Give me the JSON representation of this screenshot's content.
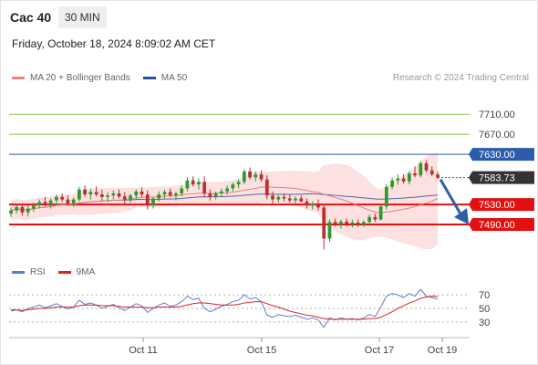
{
  "header": {
    "title": "Cac 40",
    "timeframe": "30 MIN",
    "datetime": "Friday, October 18, 2024 8:09:02 AM CET",
    "credit": "Research © 2024 Trading Central"
  },
  "legend": {
    "items": [
      {
        "label": "MA 20 + Bollinger Bands",
        "color": "#f08080"
      },
      {
        "label": "MA 50",
        "color": "#2b4f9a"
      }
    ]
  },
  "rsi_legend": {
    "items": [
      {
        "label": "RSI",
        "color": "#5b7fd6"
      },
      {
        "label": "9MA",
        "color": "#dd2222"
      }
    ]
  },
  "colors": {
    "candle_up": "#2e9a2e",
    "candle_down": "#b83030",
    "band_fill": "#fde0e0",
    "ma50": "#55669a",
    "ma20": "#e08080",
    "resistance_green": "#8bc34a",
    "pivot_blue": "#2a5caa",
    "support_red": "#e31010",
    "current_price": "#333333",
    "arrow": "#2c5fa8"
  },
  "chart_data": [
    {
      "type": "candlestick",
      "title": "",
      "x_tick_labels": [
        "Oct 11",
        "Oct 15",
        "Oct 17",
        "Oct 19"
      ],
      "y_range": [
        7410,
        7765
      ],
      "levels": [
        {
          "value": 7710.0,
          "label": "7710.00",
          "kind": "resistance"
        },
        {
          "value": 7670.0,
          "label": "7670.00",
          "kind": "resistance"
        },
        {
          "value": 7630.0,
          "label": "7630.00",
          "kind": "pivot"
        },
        {
          "value": 7583.73,
          "label": "7583.73",
          "kind": "current"
        },
        {
          "value": 7530.0,
          "label": "7530.00",
          "kind": "support"
        },
        {
          "value": 7490.0,
          "label": "7490.00",
          "kind": "support"
        }
      ],
      "ohlc": [
        [
          7512,
          7524,
          7505,
          7518
        ],
        [
          7518,
          7530,
          7512,
          7525
        ],
        [
          7525,
          7532,
          7508,
          7514
        ],
        [
          7514,
          7528,
          7506,
          7522
        ],
        [
          7522,
          7534,
          7515,
          7528
        ],
        [
          7528,
          7540,
          7522,
          7535
        ],
        [
          7535,
          7545,
          7526,
          7530
        ],
        [
          7530,
          7542,
          7522,
          7538
        ],
        [
          7538,
          7550,
          7530,
          7545
        ],
        [
          7545,
          7552,
          7535,
          7540
        ],
        [
          7540,
          7548,
          7528,
          7532
        ],
        [
          7532,
          7544,
          7525,
          7540
        ],
        [
          7540,
          7565,
          7536,
          7560
        ],
        [
          7560,
          7568,
          7545,
          7550
        ],
        [
          7550,
          7562,
          7540,
          7555
        ],
        [
          7555,
          7566,
          7546,
          7550
        ],
        [
          7550,
          7560,
          7538,
          7545
        ],
        [
          7545,
          7554,
          7535,
          7548
        ],
        [
          7548,
          7558,
          7540,
          7552
        ],
        [
          7552,
          7560,
          7542,
          7546
        ],
        [
          7546,
          7555,
          7530,
          7540
        ],
        [
          7540,
          7552,
          7534,
          7548
        ],
        [
          7548,
          7560,
          7540,
          7556
        ],
        [
          7556,
          7564,
          7544,
          7550
        ],
        [
          7550,
          7558,
          7520,
          7528
        ],
        [
          7528,
          7545,
          7522,
          7542
        ],
        [
          7542,
          7556,
          7536,
          7550
        ],
        [
          7550,
          7560,
          7542,
          7555
        ],
        [
          7555,
          7562,
          7545,
          7548
        ],
        [
          7548,
          7556,
          7538,
          7552
        ],
        [
          7552,
          7568,
          7546,
          7562
        ],
        [
          7562,
          7584,
          7556,
          7578
        ],
        [
          7578,
          7586,
          7566,
          7570
        ],
        [
          7570,
          7582,
          7560,
          7575
        ],
        [
          7575,
          7586,
          7545,
          7552
        ],
        [
          7552,
          7560,
          7538,
          7545
        ],
        [
          7545,
          7556,
          7540,
          7552
        ],
        [
          7552,
          7562,
          7546,
          7556
        ],
        [
          7556,
          7568,
          7550,
          7562
        ],
        [
          7562,
          7574,
          7556,
          7570
        ],
        [
          7570,
          7580,
          7562,
          7575
        ],
        [
          7575,
          7600,
          7570,
          7596
        ],
        [
          7596,
          7604,
          7580,
          7584
        ],
        [
          7584,
          7596,
          7576,
          7590
        ],
        [
          7590,
          7598,
          7575,
          7580
        ],
        [
          7580,
          7588,
          7540,
          7548
        ],
        [
          7548,
          7556,
          7532,
          7540
        ],
        [
          7540,
          7550,
          7534,
          7545
        ],
        [
          7545,
          7552,
          7536,
          7542
        ],
        [
          7542,
          7550,
          7534,
          7538
        ],
        [
          7538,
          7546,
          7530,
          7542
        ],
        [
          7542,
          7548,
          7534,
          7536
        ],
        [
          7536,
          7542,
          7522,
          7528
        ],
        [
          7528,
          7536,
          7520,
          7532
        ],
        [
          7532,
          7540,
          7518,
          7524
        ],
        [
          7524,
          7530,
          7440,
          7462
        ],
        [
          7462,
          7500,
          7455,
          7495
        ],
        [
          7495,
          7502,
          7486,
          7490
        ],
        [
          7490,
          7500,
          7482,
          7496
        ],
        [
          7496,
          7502,
          7486,
          7492
        ],
        [
          7492,
          7500,
          7484,
          7494
        ],
        [
          7494,
          7500,
          7486,
          7490
        ],
        [
          7490,
          7498,
          7485,
          7495
        ],
        [
          7495,
          7510,
          7490,
          7505
        ],
        [
          7505,
          7512,
          7495,
          7500
        ],
        [
          7500,
          7530,
          7498,
          7526
        ],
        [
          7526,
          7570,
          7520,
          7565
        ],
        [
          7565,
          7584,
          7560,
          7578
        ],
        [
          7578,
          7590,
          7570,
          7582
        ],
        [
          7582,
          7590,
          7572,
          7576
        ],
        [
          7576,
          7596,
          7570,
          7592
        ],
        [
          7592,
          7606,
          7584,
          7588
        ],
        [
          7588,
          7616,
          7584,
          7612
        ],
        [
          7612,
          7618,
          7594,
          7598
        ],
        [
          7598,
          7606,
          7586,
          7590
        ],
        [
          7590,
          7596,
          7580,
          7583.73
        ]
      ]
    },
    {
      "type": "line",
      "title": "",
      "y_range": [
        15,
        85
      ],
      "y_tick_labels": [
        "70",
        "50",
        "30"
      ],
      "y_ticks": [
        70,
        50,
        30
      ],
      "series": [
        {
          "name": "RSI",
          "values": [
            46,
            48,
            45,
            50,
            52,
            55,
            51,
            54,
            57,
            53,
            49,
            52,
            62,
            56,
            58,
            55,
            50,
            53,
            56,
            51,
            47,
            52,
            57,
            54,
            44,
            50,
            55,
            58,
            53,
            55,
            60,
            68,
            63,
            65,
            50,
            45,
            49,
            53,
            56,
            60,
            62,
            70,
            64,
            66,
            60,
            40,
            37,
            41,
            39,
            38,
            40,
            37,
            34,
            36,
            33,
            22,
            36,
            33,
            36,
            34,
            35,
            33,
            36,
            41,
            38,
            52,
            68,
            72,
            70,
            66,
            72,
            68,
            78,
            68,
            66,
            64
          ]
        },
        {
          "name": "9MA",
          "values": [
            48,
            48,
            47,
            48,
            49,
            50,
            50,
            51,
            52,
            52,
            52,
            52,
            54,
            55,
            55,
            55,
            54,
            54,
            54,
            53,
            52,
            52,
            52,
            52,
            51,
            51,
            52,
            52,
            52,
            52,
            53,
            55,
            57,
            58,
            58,
            57,
            56,
            55,
            55,
            55,
            56,
            58,
            59,
            60,
            60,
            57,
            54,
            52,
            49,
            46,
            44,
            42,
            40,
            39,
            37,
            35,
            34,
            34,
            34,
            34,
            34,
            34,
            34,
            35,
            35,
            37,
            41,
            45,
            50,
            54,
            58,
            61,
            65,
            67,
            68,
            68
          ]
        }
      ]
    }
  ]
}
